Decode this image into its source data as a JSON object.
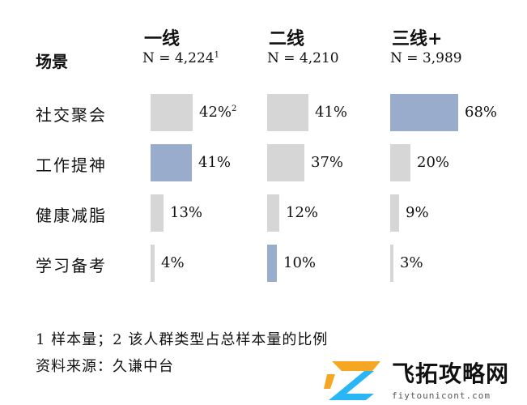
{
  "header": {
    "scene_label": "场景",
    "columns": [
      {
        "title": "一线",
        "n": "N = 4,224",
        "n_sup": "1"
      },
      {
        "title": "二线",
        "n": "N = 4,210",
        "n_sup": ""
      },
      {
        "title": "三线+",
        "n": "N = 3,989",
        "n_sup": ""
      }
    ]
  },
  "rows": [
    "社交聚会",
    "工作提神",
    "健康减脂",
    "学习备考"
  ],
  "chart_data": {
    "type": "bar",
    "title": "",
    "categories": [
      "社交聚会",
      "工作提神",
      "健康减脂",
      "学习备考"
    ],
    "series": [
      {
        "name": "一线",
        "values": [
          42,
          41,
          13,
          4
        ],
        "labels": [
          "42%",
          "41%",
          "13%",
          "4%"
        ],
        "label_sups": [
          "2",
          "",
          "",
          ""
        ],
        "highlight": [
          false,
          true,
          false,
          false
        ]
      },
      {
        "name": "二线",
        "values": [
          41,
          37,
          12,
          10
        ],
        "labels": [
          "41%",
          "37%",
          "12%",
          "10%"
        ],
        "label_sups": [
          "",
          "",
          "",
          ""
        ],
        "highlight": [
          false,
          false,
          false,
          true
        ]
      },
      {
        "name": "三线+",
        "values": [
          68,
          20,
          9,
          3
        ],
        "labels": [
          "68%",
          "20%",
          "9%",
          "3%"
        ],
        "label_sups": [
          "",
          "",
          "",
          ""
        ],
        "highlight": [
          true,
          false,
          false,
          false
        ]
      }
    ],
    "unit": "%",
    "colors": {
      "normal": "#d6d6d6",
      "highlight": "#9aaccc"
    }
  },
  "footer": {
    "note": "1 样本量；2 该人群类型占总样本量的比例",
    "source": "资料来源：久谦中台"
  },
  "watermark": {
    "name": "飞拓攻略网",
    "url": "fiytounicont.com",
    "logo_icon": "fz-logo-icon",
    "logo_colors": [
      "#f5a623",
      "#29b6f6"
    ]
  }
}
